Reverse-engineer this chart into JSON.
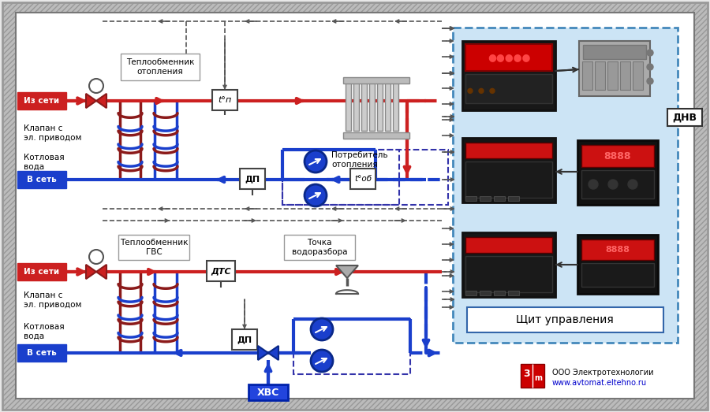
{
  "bg_color": "#e8e8e8",
  "white": "#ffffff",
  "red": "#cc2020",
  "dark_red": "#8b1a1a",
  "blue": "#1a3fcc",
  "dark_blue": "#0a2888",
  "gray": "#888888",
  "dash_color": "#444444",
  "panel_bg": "#cce4f5",
  "panel_border": "#4488bb",
  "label_iz_seti": "Из сети",
  "label_v_set": "В сеть",
  "label_klapan": "Клапан с\nэл. приводом",
  "label_kotl": "Котловая\nвода",
  "label_tepl_otop": "Теплообменник\nотопления",
  "label_potr_otop": "Потребитель\nотопления",
  "label_tepl_gvs": "Теплообменник\nГВС",
  "label_tochka": "Точка\nводоразбора",
  "label_shchit": "Щит управления",
  "label_dnv": "ДНВ",
  "label_hvs": "ХВС",
  "label_dp": "ДП",
  "label_dtc": "ДТС",
  "label_tp": "t°п",
  "label_tob": "t°об",
  "label_ooo": "ООО Электротехнологии",
  "label_www": "www.avtomat.eltehno.ru",
  "figsize": [
    9.0,
    5.23
  ],
  "dpi": 100
}
